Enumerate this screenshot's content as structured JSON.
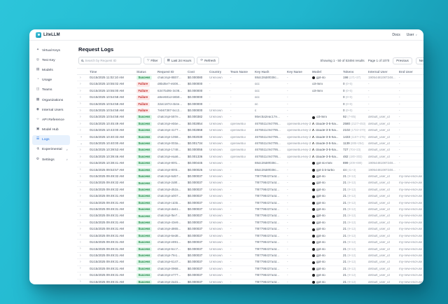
{
  "app": {
    "brand": "LiteLLM",
    "docs": "Docs",
    "user": "User"
  },
  "colors": {
    "accent": "#1a6fe0",
    "success_bg": "#def7e9",
    "success_text": "#15803d",
    "failure_bg": "#fde8e8",
    "failure_text": "#c03030",
    "background_start": "#2cc5da",
    "background_end": "#0f87a0"
  },
  "icons": {
    "key": "✦",
    "test-key": "◎",
    "models": "▤",
    "usage": "◔",
    "teams": "◫",
    "organizations": "▦",
    "internal-users": "◉",
    "api-reference": "‹›",
    "model-hub": "▣",
    "logs": "☰",
    "experimental": "⚗",
    "settings": "⚙",
    "filter": "▽",
    "calendar": "▦",
    "refresh": "⟳",
    "chevron-right": "›",
    "chevron-down": "⌄",
    "caret-down": "∨",
    "openai-logo": "●",
    "anthropic-logo": "Λ"
  },
  "sidebar": {
    "items": [
      {
        "name": "virtual-keys",
        "label": "Virtual Keys",
        "icon": "key",
        "active": false,
        "expandable": false
      },
      {
        "name": "test-key",
        "label": "Test Key",
        "icon": "test-key",
        "active": false,
        "expandable": false
      },
      {
        "name": "models",
        "label": "Models",
        "icon": "models",
        "active": false,
        "expandable": false
      },
      {
        "name": "usage",
        "label": "Usage",
        "icon": "usage",
        "active": false,
        "expandable": false
      },
      {
        "name": "teams",
        "label": "Teams",
        "icon": "teams",
        "active": false,
        "expandable": false
      },
      {
        "name": "organizations",
        "label": "Organizations",
        "icon": "organizations",
        "active": false,
        "expandable": false
      },
      {
        "name": "internal-users",
        "label": "Internal Users",
        "icon": "internal-users",
        "active": false,
        "expandable": false
      },
      {
        "name": "api-reference",
        "label": "API Reference",
        "icon": "api-reference",
        "active": false,
        "expandable": false
      },
      {
        "name": "model-hub",
        "label": "Model Hub",
        "icon": "model-hub",
        "active": false,
        "expandable": false
      },
      {
        "name": "logs",
        "label": "Logs",
        "icon": "logs",
        "active": true,
        "expandable": false
      },
      {
        "name": "experimental",
        "label": "Experimental",
        "icon": "experimental",
        "active": false,
        "expandable": true
      },
      {
        "name": "settings",
        "label": "Settings",
        "icon": "settings",
        "active": false,
        "expandable": true
      }
    ]
  },
  "page": {
    "title": "Request Logs"
  },
  "toolbar": {
    "search_placeholder": "Search by Request ID",
    "filter": "Filter",
    "time_range": "Last 24 Hours",
    "refresh": "Refresh"
  },
  "pagination": {
    "showing": "Showing 1 - 50 of 53494 results",
    "page": "Page 1 of 1070",
    "previous": "Previous",
    "next": "Next"
  },
  "table": {
    "columns": [
      "",
      "Time",
      "Status",
      "Request ID",
      "Cost",
      "Country",
      "Team Name",
      "Key Hash",
      "Key Name",
      "Model",
      "Tokens",
      "Internal User",
      "End User"
    ],
    "rows": [
      {
        "time": "01/15/2025 11:02:10 AM",
        "status": "Success",
        "request_id": "chatcmpl-8B07...",
        "cost": "$0.000080",
        "country": "Unknown",
        "team_name": "-",
        "key_hash": "88dc28d8f038c...",
        "key_name": "-",
        "provider": "openai",
        "model": "gpt-4o",
        "tokens": "198",
        "tokens_detail": "(171+27)",
        "internal_user": "19054481087248...",
        "end_user": "-",
        "expanded": false
      },
      {
        "time": "01/15/2025 10:55:02 AM",
        "status": "Failure",
        "request_id": "d8bd5e7-eb08...",
        "cost": "$0.000000",
        "country": "-",
        "team_name": "-",
        "key_hash": "ccc",
        "key_name": "-",
        "provider": "",
        "model": "o3-mini",
        "tokens": "0",
        "tokens_detail": "(0+0)",
        "internal_user": "-",
        "end_user": "-",
        "expanded": false
      },
      {
        "time": "01/15/2025 10:55:00 AM",
        "status": "Failure",
        "request_id": "6347bd9b-3c08...",
        "cost": "$0.000000",
        "country": "-",
        "team_name": "-",
        "key_hash": "ccc",
        "key_name": "-",
        "provider": "",
        "model": "o3-mini",
        "tokens": "0",
        "tokens_detail": "(0+0)",
        "internal_user": "-",
        "end_user": "-",
        "expanded": false
      },
      {
        "time": "01/15/2025 10:54:58 AM",
        "status": "Failure",
        "request_id": "a9ee681d-b8b8...",
        "cost": "$0.000000",
        "country": "-",
        "team_name": "-",
        "key_hash": "ccc",
        "key_name": "-",
        "provider": "",
        "model": "",
        "tokens": "0",
        "tokens_detail": "(0+0)",
        "internal_user": "-",
        "end_user": "-",
        "expanded": false
      },
      {
        "time": "01/15/2025 10:54:58 AM",
        "status": "Failure",
        "request_id": "32dc187d-4b4e...",
        "cost": "$0.000000",
        "country": "-",
        "team_name": "-",
        "key_hash": "cc",
        "key_name": "-",
        "provider": "",
        "model": "",
        "tokens": "0",
        "tokens_detail": "(0+0)",
        "internal_user": "-",
        "end_user": "-",
        "expanded": false
      },
      {
        "time": "01/15/2025 10:54:58 AM",
        "status": "Failure",
        "request_id": "7eb67387-bcc2...",
        "cost": "$0.000000",
        "country": "Unknown",
        "team_name": "-",
        "key_hash": "c",
        "key_name": "-",
        "provider": "",
        "model": "",
        "tokens": "0",
        "tokens_detail": "(0+0)",
        "internal_user": "-",
        "end_user": "-",
        "expanded": false
      },
      {
        "time": "01/15/2025 10:54:58 AM",
        "status": "Success",
        "request_id": "chatcmpl-b87e...",
        "cost": "$0.000382",
        "country": "Unknown",
        "team_name": "-",
        "key_hash": "86ec5a2eac17e...",
        "key_name": "-",
        "provider": "openai",
        "model": "o3-mini",
        "tokens": "92",
        "tokens_detail": "(7+85)",
        "internal_user": "default_user_id",
        "end_user": "-",
        "expanded": false
      },
      {
        "time": "01/15/2025 10:45:49 AM",
        "status": "Success",
        "request_id": "chatcmpl-ebbe...",
        "cost": "$0.002854",
        "country": "Unknown",
        "team_name": "openwebui",
        "key_hash": "4676511c9cf795...",
        "key_name": "openwebui-key-2",
        "provider": "anthropic",
        "model": "claude-3-5-hai...",
        "tokens": "2580",
        "tokens_detail": "(2127+453)",
        "internal_user": "default_user_id",
        "end_user": "-",
        "expanded": false
      },
      {
        "time": "01/15/2025 10:43:00 AM",
        "status": "Success",
        "request_id": "chatcmpl-4177...",
        "cost": "$0.002868",
        "country": "Unknown",
        "team_name": "openwebui",
        "key_hash": "4676511c9cf795...",
        "key_name": "openwebui-key-2",
        "provider": "anthropic",
        "model": "claude-3-5-hai...",
        "tokens": "2102",
        "tokens_detail": "(1732+370)",
        "internal_user": "default_user_id",
        "end_user": "-",
        "expanded": false
      },
      {
        "time": "01/15/2025 10:40:33 AM",
        "status": "Success",
        "request_id": "chatcmpl-1058...",
        "cost": "$0.002030",
        "country": "Unknown",
        "team_name": "openwebui",
        "key_hash": "4676511c9cf795...",
        "key_name": "openwebui-key-2",
        "provider": "anthropic",
        "model": "claude-3-5-hai...",
        "tokens": "1433",
        "tokens_detail": "(1157+276)",
        "internal_user": "default_user_id",
        "end_user": "-",
        "expanded": true
      },
      {
        "time": "01/15/2025 10:40:00 AM",
        "status": "Success",
        "request_id": "chatcmpl-003a...",
        "cost": "$0.001734",
        "country": "Unknown",
        "team_name": "openwebui",
        "key_hash": "4676511c9cf795...",
        "key_name": "openwebui-key-2",
        "provider": "anthropic",
        "model": "claude-3-5-hai...",
        "tokens": "1139",
        "tokens_detail": "(885+254)",
        "internal_user": "default_user_id",
        "end_user": "-",
        "expanded": true
      },
      {
        "time": "01/15/2025 10:39:53 AM",
        "status": "Success",
        "request_id": "chatcmpl-1748...",
        "cost": "$0.000055",
        "country": "Unknown",
        "team_name": "openwebui",
        "key_hash": "4676511c9cf795...",
        "key_name": "openwebui-key-2",
        "provider": "anthropic",
        "model": "claude-3-5-hai...",
        "tokens": "727",
        "tokens_detail": "(704+23)",
        "internal_user": "default_user_id",
        "end_user": "-",
        "expanded": false
      },
      {
        "time": "01/15/2025 10:39:46 AM",
        "status": "Success",
        "request_id": "chatcmpl-eaa6...",
        "cost": "$0.001336",
        "country": "Unknown",
        "team_name": "openwebui",
        "key_hash": "4676511c9cf795...",
        "key_name": "openwebui-key-2",
        "provider": "anthropic",
        "model": "claude-3-5-hai...",
        "tokens": "482",
        "tokens_detail": "(180+302)",
        "internal_user": "default_user_id",
        "end_user": "-",
        "expanded": false
      },
      {
        "time": "01/15/2025 10:38:41 AM",
        "status": "Success",
        "request_id": "chatcmpl-80f1...",
        "cost": "$0.000445",
        "country": "Unknown",
        "team_name": "-",
        "key_hash": "88dc28d8f038c...",
        "key_name": "-",
        "provider": "openai",
        "model": "gpt-4o-mini",
        "tokens": "899",
        "tokens_detail": "(209+690)",
        "internal_user": "19054481087248...",
        "end_user": "-",
        "expanded": false
      },
      {
        "time": "01/15/2025 09:53:57 AM",
        "status": "Success",
        "request_id": "chatcmpl-80f3...",
        "cost": "$0.000025",
        "country": "Unknown",
        "team_name": "-",
        "key_hash": "88dc28d8f038c...",
        "key_name": "-",
        "provider": "openai",
        "model": "gpt-3.5-turbo",
        "tokens": "44",
        "tokens_detail": "(41+3)",
        "internal_user": "19054481087248...",
        "end_user": "-",
        "expanded": false
      },
      {
        "time": "01/15/2025 09:49:32 AM",
        "status": "Success",
        "request_id": "chatcmpl-6db7...",
        "cost": "$0.000037",
        "country": "Unknown",
        "team_name": "-",
        "key_hash": "7f87798437a4d...",
        "key_name": "-",
        "provider": "openai",
        "model": "gpt-4o",
        "tokens": "21",
        "tokens_detail": "(9+12)",
        "internal_user": "default_user_id",
        "end_user": "my-new-end-user-1",
        "expanded": false
      },
      {
        "time": "01/15/2025 09:49:32 AM",
        "status": "Success",
        "request_id": "chatcmpl-2d8f...",
        "cost": "$0.000037",
        "country": "Unknown",
        "team_name": "-",
        "key_hash": "7f87798437a4d...",
        "key_name": "-",
        "provider": "openai",
        "model": "gpt-4o",
        "tokens": "21",
        "tokens_detail": "(9+12)",
        "internal_user": "default_user_id",
        "end_user": "my-new-end-user-1",
        "expanded": false
      },
      {
        "time": "01/15/2025 09:49:32 AM",
        "status": "Success",
        "request_id": "chatcmpl-d52a...",
        "cost": "$0.000037",
        "country": "Unknown",
        "team_name": "-",
        "key_hash": "7f87798437a4d...",
        "key_name": "-",
        "provider": "openai",
        "model": "gpt-4o",
        "tokens": "21",
        "tokens_detail": "(9+12)",
        "internal_user": "default_user_id",
        "end_user": "my-new-end-user-1",
        "expanded": false
      },
      {
        "time": "01/15/2025 09:49:31 AM",
        "status": "Success",
        "request_id": "chatcmpl-a007...",
        "cost": "$0.000037",
        "country": "Unknown",
        "team_name": "-",
        "key_hash": "7f87798437a4d...",
        "key_name": "-",
        "provider": "openai",
        "model": "gpt-4o",
        "tokens": "21",
        "tokens_detail": "(9+12)",
        "internal_user": "default_user_id",
        "end_user": "my-new-end-user-1",
        "expanded": false
      },
      {
        "time": "01/15/2025 09:49:31 AM",
        "status": "Success",
        "request_id": "chatcmpl-cd3b...",
        "cost": "$0.000037",
        "country": "Unknown",
        "team_name": "-",
        "key_hash": "7f87798437a4d...",
        "key_name": "-",
        "provider": "openai",
        "model": "gpt-4o",
        "tokens": "21",
        "tokens_detail": "(9+12)",
        "internal_user": "default_user_id",
        "end_user": "my-new-end-user-1",
        "expanded": false
      },
      {
        "time": "01/15/2025 09:49:31 AM",
        "status": "Success",
        "request_id": "chatcmpl-da61...",
        "cost": "$0.000037",
        "country": "Unknown",
        "team_name": "-",
        "key_hash": "7f87798437a4d...",
        "key_name": "-",
        "provider": "openai",
        "model": "gpt-4o",
        "tokens": "21",
        "tokens_detail": "(9+12)",
        "internal_user": "default_user_id",
        "end_user": "my-new-end-user-1",
        "expanded": false
      },
      {
        "time": "01/15/2025 09:49:31 AM",
        "status": "Success",
        "request_id": "chatcmpl-f5e7...",
        "cost": "$0.000037",
        "country": "Unknown",
        "team_name": "-",
        "key_hash": "7f87798437a4d...",
        "key_name": "-",
        "provider": "openai",
        "model": "gpt-4o",
        "tokens": "21",
        "tokens_detail": "(9+12)",
        "internal_user": "default_user_id",
        "end_user": "my-new-end-user-1",
        "expanded": false
      },
      {
        "time": "01/15/2025 09:49:31 AM",
        "status": "Success",
        "request_id": "chatcmpl-43e9...",
        "cost": "$0.000037",
        "country": "Unknown",
        "team_name": "-",
        "key_hash": "7f87798437a4d...",
        "key_name": "-",
        "provider": "openai",
        "model": "gpt-4o",
        "tokens": "21",
        "tokens_detail": "(9+12)",
        "internal_user": "default_user_id",
        "end_user": "my-new-end-user-1",
        "expanded": false
      },
      {
        "time": "01/15/2025 09:49:31 AM",
        "status": "Success",
        "request_id": "chatcmpl-d865...",
        "cost": "$0.000037",
        "country": "Unknown",
        "team_name": "-",
        "key_hash": "7f87798437a4d...",
        "key_name": "-",
        "provider": "openai",
        "model": "gpt-4o",
        "tokens": "21",
        "tokens_detail": "(9+12)",
        "internal_user": "default_user_id",
        "end_user": "my-new-end-user-1",
        "expanded": false
      },
      {
        "time": "01/15/2025 09:49:31 AM",
        "status": "Success",
        "request_id": "chatcmpl-6ed8...",
        "cost": "$0.000037",
        "country": "Unknown",
        "team_name": "-",
        "key_hash": "7f87798437a4d...",
        "key_name": "-",
        "provider": "openai",
        "model": "gpt-4o",
        "tokens": "21",
        "tokens_detail": "(9+12)",
        "internal_user": "default_user_id",
        "end_user": "my-new-end-user-1",
        "expanded": false
      },
      {
        "time": "01/15/2025 09:49:31 AM",
        "status": "Success",
        "request_id": "chatcmpl-e891...",
        "cost": "$0.000037",
        "country": "Unknown",
        "team_name": "-",
        "key_hash": "7f87798437a4d...",
        "key_name": "-",
        "provider": "openai",
        "model": "gpt-4o",
        "tokens": "21",
        "tokens_detail": "(9+12)",
        "internal_user": "default_user_id",
        "end_user": "my-new-end-user-1",
        "expanded": false
      },
      {
        "time": "01/15/2025 09:49:31 AM",
        "status": "Success",
        "request_id": "chatcmpl-6cc7...",
        "cost": "$0.000037",
        "country": "Unknown",
        "team_name": "-",
        "key_hash": "7f87798437a4d...",
        "key_name": "-",
        "provider": "openai",
        "model": "gpt-4o",
        "tokens": "21",
        "tokens_detail": "(9+12)",
        "internal_user": "default_user_id",
        "end_user": "my-new-end-user-1",
        "expanded": false
      },
      {
        "time": "01/15/2025 09:49:31 AM",
        "status": "Success",
        "request_id": "chatcmpl-7fe1...",
        "cost": "$0.000037",
        "country": "Unknown",
        "team_name": "-",
        "key_hash": "7f87798437a4d...",
        "key_name": "-",
        "provider": "openai",
        "model": "gpt-4o",
        "tokens": "21",
        "tokens_detail": "(9+12)",
        "internal_user": "default_user_id",
        "end_user": "my-new-end-user-1",
        "expanded": false
      },
      {
        "time": "01/15/2025 09:49:31 AM",
        "status": "Success",
        "request_id": "chatcmpl-6147...",
        "cost": "$0.000037",
        "country": "Unknown",
        "team_name": "-",
        "key_hash": "7f87798437a4d...",
        "key_name": "-",
        "provider": "openai",
        "model": "gpt-4o",
        "tokens": "21",
        "tokens_detail": "(9+12)",
        "internal_user": "default_user_id",
        "end_user": "my-new-end-user-1",
        "expanded": false
      },
      {
        "time": "01/15/2025 09:49:31 AM",
        "status": "Success",
        "request_id": "chatcmpl-0968...",
        "cost": "$0.000037",
        "country": "Unknown",
        "team_name": "-",
        "key_hash": "7f87798437a4d...",
        "key_name": "-",
        "provider": "openai",
        "model": "gpt-4o",
        "tokens": "21",
        "tokens_detail": "(9+12)",
        "internal_user": "default_user_id",
        "end_user": "my-new-end-user-1",
        "expanded": false
      },
      {
        "time": "01/15/2025 09:49:31 AM",
        "status": "Success",
        "request_id": "chatcmpl-e777...",
        "cost": "$0.000037",
        "country": "Unknown",
        "team_name": "-",
        "key_hash": "7f87798437a4d...",
        "key_name": "-",
        "provider": "openai",
        "model": "gpt-4o",
        "tokens": "21",
        "tokens_detail": "(9+12)",
        "internal_user": "default_user_id",
        "end_user": "my-new-end-user-1",
        "expanded": false
      },
      {
        "time": "01/15/2025 09:49:31 AM",
        "status": "Success",
        "request_id": "chatcmpl-2a31...",
        "cost": "$0.000037",
        "country": "Unknown",
        "team_name": "-",
        "key_hash": "7f87798437a4d...",
        "key_name": "-",
        "provider": "openai",
        "model": "gpt-4o",
        "tokens": "21",
        "tokens_detail": "(9+12)",
        "internal_user": "default_user_id",
        "end_user": "my-new-end-user-1",
        "expanded": false
      }
    ]
  }
}
